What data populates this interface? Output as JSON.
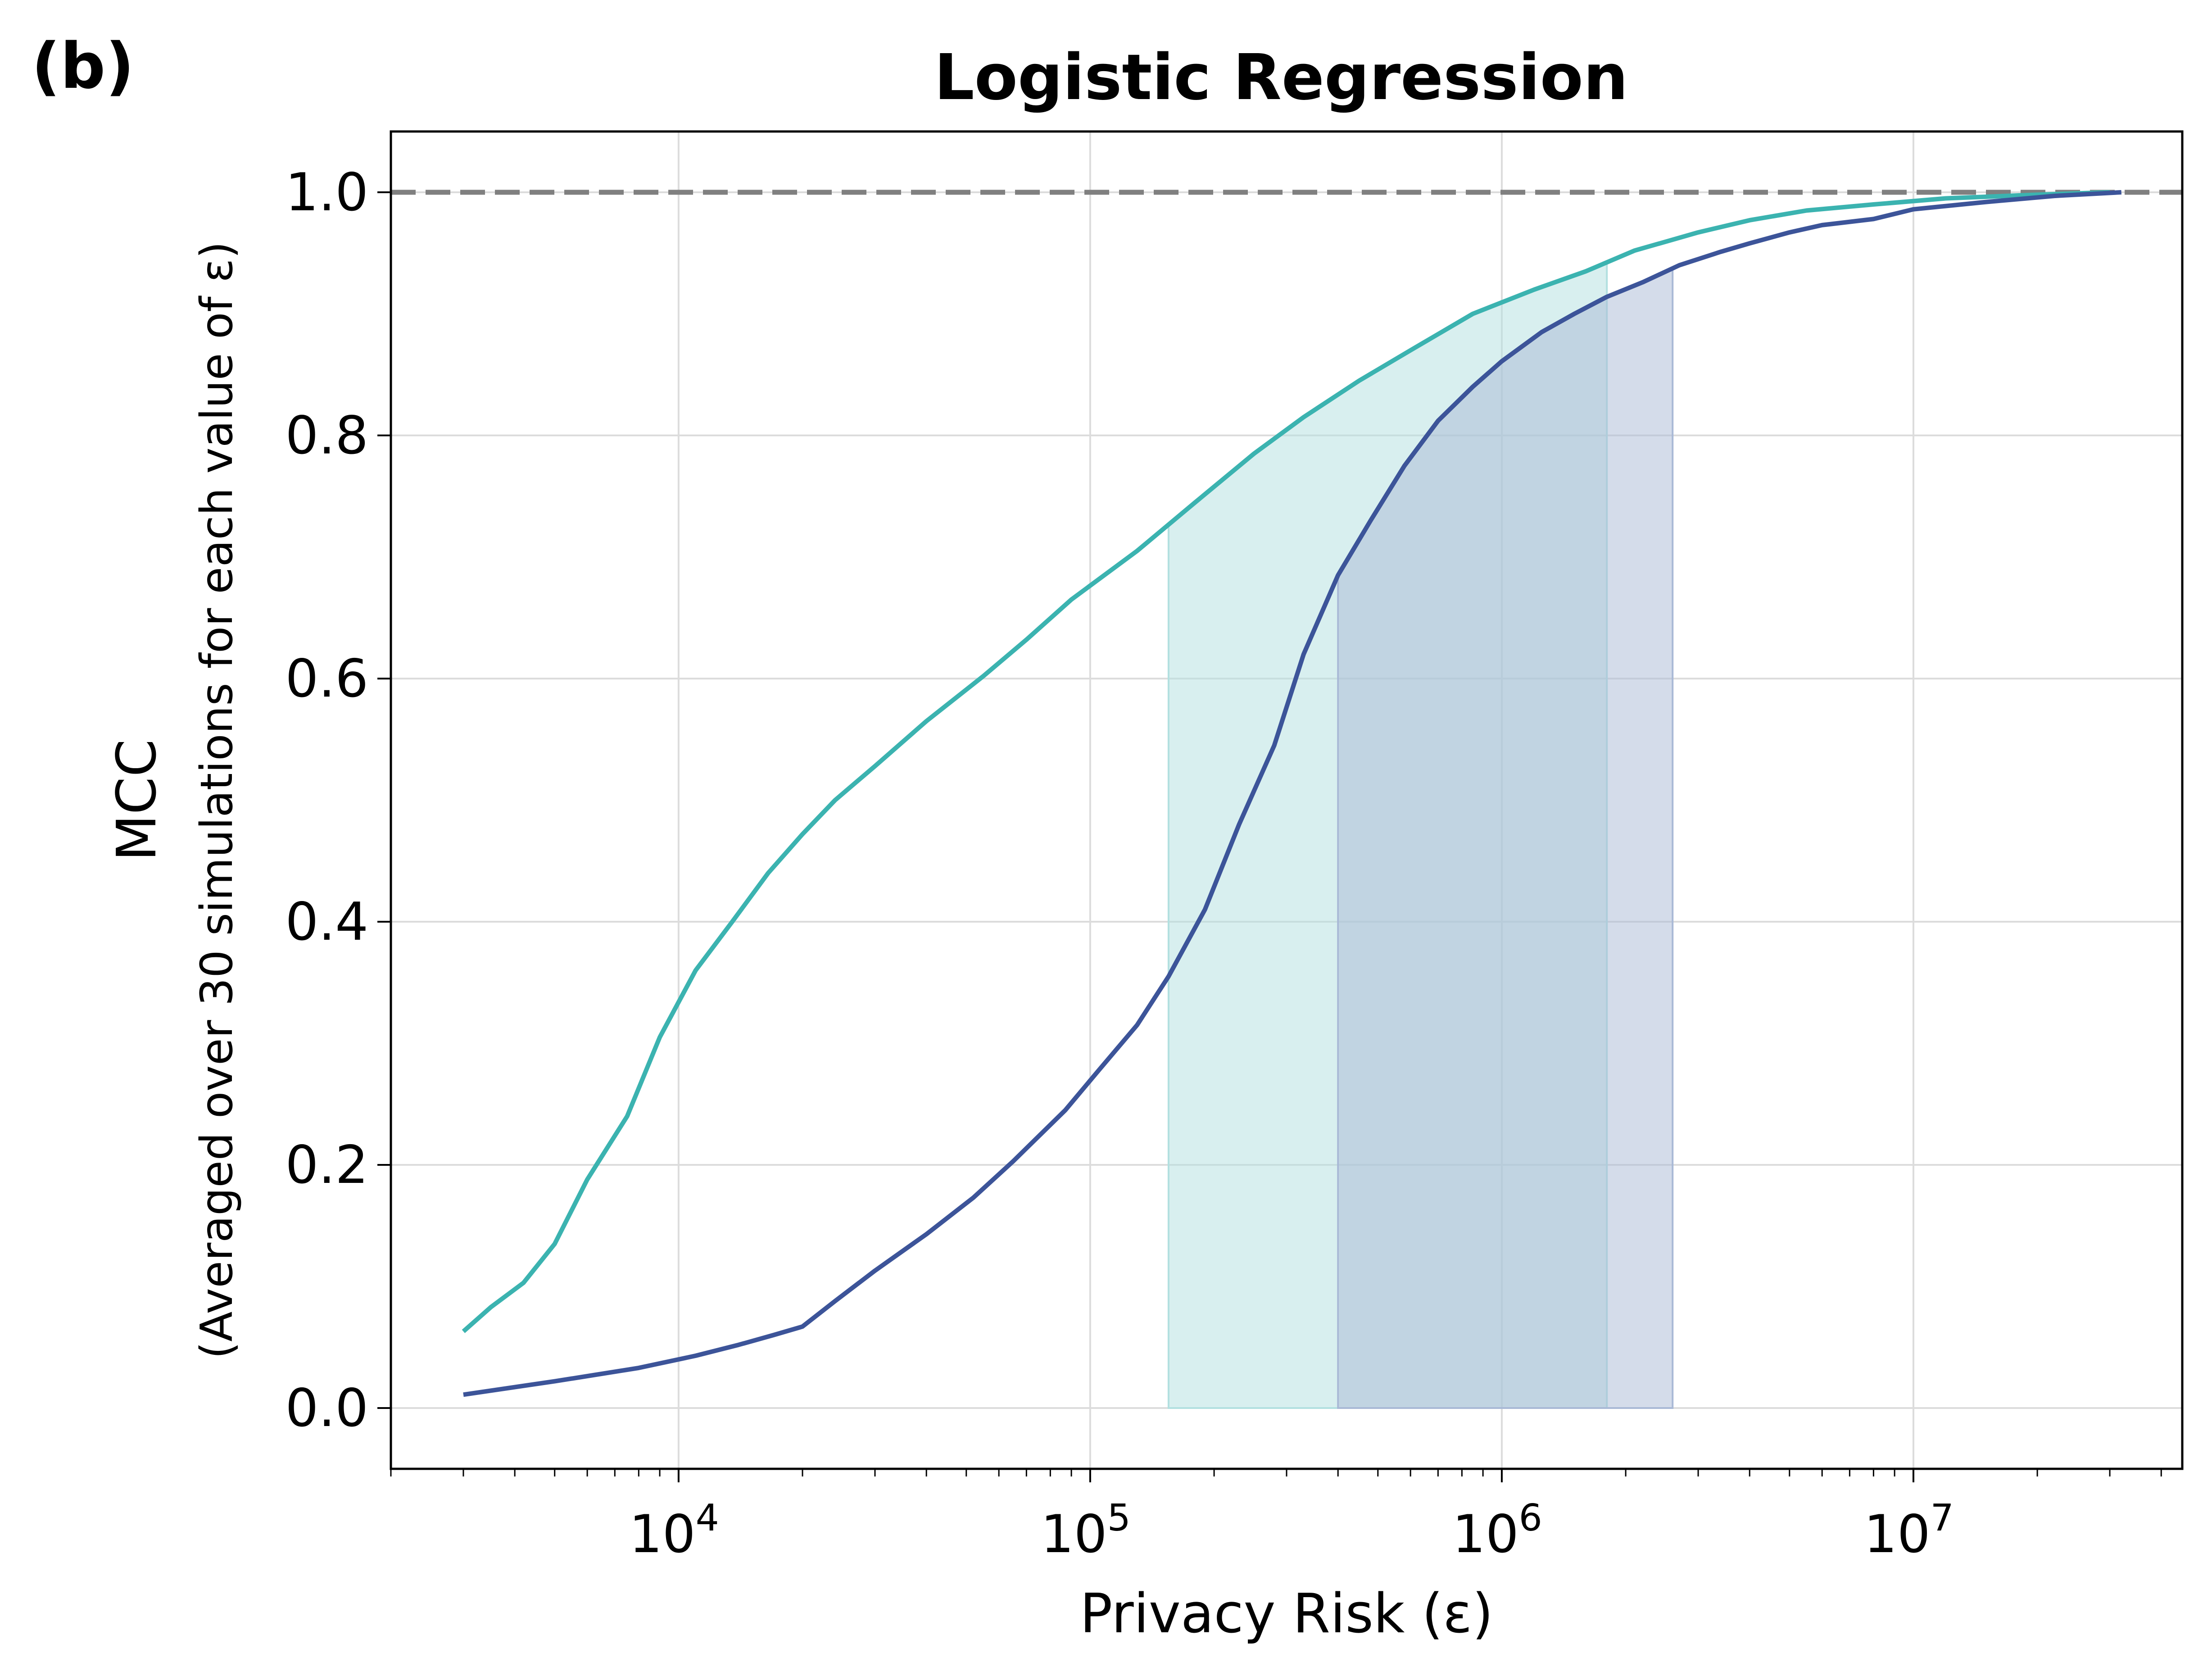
{
  "panel_label": "(b)",
  "chart_data": {
    "type": "line",
    "title": "Logistic Regression",
    "xlabel": "Privacy Risk (ε)",
    "ylabel": "MCC",
    "ylabel_sub": "(Averaged over 30 simulations for each value of ε)",
    "xscale": "log",
    "xlim": [
      2000,
      45000000
    ],
    "ylim": [
      -0.05,
      1.05
    ],
    "grid": true,
    "x_ticks": [
      {
        "value": 10000,
        "base": "10",
        "exp": "4"
      },
      {
        "value": 100000,
        "base": "10",
        "exp": "5"
      },
      {
        "value": 1000000,
        "base": "10",
        "exp": "6"
      },
      {
        "value": 10000000,
        "base": "10",
        "exp": "7"
      }
    ],
    "y_ticks": [
      {
        "value": 0.0,
        "label": "0.0"
      },
      {
        "value": 0.2,
        "label": "0.2"
      },
      {
        "value": 0.4,
        "label": "0.4"
      },
      {
        "value": 0.6,
        "label": "0.6"
      },
      {
        "value": 0.8,
        "label": "0.8"
      },
      {
        "value": 1.0,
        "label": "1.0"
      }
    ],
    "reference_line": {
      "y": 1.0,
      "color": "#808080",
      "style": "dashed"
    },
    "series": [
      {
        "color": "#3bb3b0",
        "points": [
          [
            3000,
            0.063
          ],
          [
            3500,
            0.083
          ],
          [
            4200,
            0.103
          ],
          [
            5000,
            0.135
          ],
          [
            6000,
            0.188
          ],
          [
            7500,
            0.24
          ],
          [
            9000,
            0.305
          ],
          [
            11000,
            0.36
          ],
          [
            13500,
            0.4
          ],
          [
            16500,
            0.44
          ],
          [
            20000,
            0.472
          ],
          [
            24000,
            0.5
          ],
          [
            30000,
            0.528
          ],
          [
            40000,
            0.565
          ],
          [
            55000,
            0.602
          ],
          [
            70000,
            0.632
          ],
          [
            90000,
            0.665
          ],
          [
            130000,
            0.705
          ],
          [
            180000,
            0.745
          ],
          [
            250000,
            0.785
          ],
          [
            330000,
            0.815
          ],
          [
            450000,
            0.845
          ],
          [
            600000,
            0.87
          ],
          [
            850000,
            0.9
          ],
          [
            1200000,
            0.92
          ],
          [
            1600000,
            0.935
          ],
          [
            2100000,
            0.952
          ],
          [
            3000000,
            0.967
          ],
          [
            4000000,
            0.977
          ],
          [
            5500000,
            0.985
          ],
          [
            8000000,
            0.99
          ],
          [
            12000000,
            0.995
          ],
          [
            20000000,
            0.998
          ],
          [
            30000000,
            1.0
          ]
        ]
      },
      {
        "color": "#3c5499",
        "points": [
          [
            3000,
            0.011
          ],
          [
            5000,
            0.022
          ],
          [
            8000,
            0.033
          ],
          [
            11000,
            0.043
          ],
          [
            14000,
            0.052
          ],
          [
            17000,
            0.06
          ],
          [
            20000,
            0.067
          ],
          [
            24000,
            0.088
          ],
          [
            30000,
            0.113
          ],
          [
            40000,
            0.143
          ],
          [
            52000,
            0.173
          ],
          [
            65000,
            0.203
          ],
          [
            87000,
            0.245
          ],
          [
            105000,
            0.278
          ],
          [
            130000,
            0.315
          ],
          [
            155000,
            0.355
          ],
          [
            190000,
            0.41
          ],
          [
            230000,
            0.48
          ],
          [
            280000,
            0.545
          ],
          [
            330000,
            0.62
          ],
          [
            400000,
            0.685
          ],
          [
            480000,
            0.73
          ],
          [
            580000,
            0.775
          ],
          [
            700000,
            0.812
          ],
          [
            850000,
            0.84
          ],
          [
            1000000,
            0.861
          ],
          [
            1250000,
            0.885
          ],
          [
            1500000,
            0.9
          ],
          [
            1800000,
            0.914
          ],
          [
            2200000,
            0.926
          ],
          [
            2700000,
            0.94
          ],
          [
            3400000,
            0.951
          ],
          [
            4000000,
            0.958
          ],
          [
            5000000,
            0.967
          ],
          [
            6000000,
            0.973
          ],
          [
            8000000,
            0.978
          ],
          [
            10000000,
            0.986
          ],
          [
            15000000,
            0.992
          ],
          [
            22000000,
            0.997
          ],
          [
            32000000,
            1.0
          ]
        ]
      }
    ],
    "shaded_regions": [
      {
        "x0": 155000,
        "x1": 1800000,
        "color": "#b2e0e0",
        "opacity": 0.5
      },
      {
        "x0": 400000,
        "x1": 2600000,
        "color": "#a9b9d6",
        "opacity": 0.5
      }
    ]
  }
}
